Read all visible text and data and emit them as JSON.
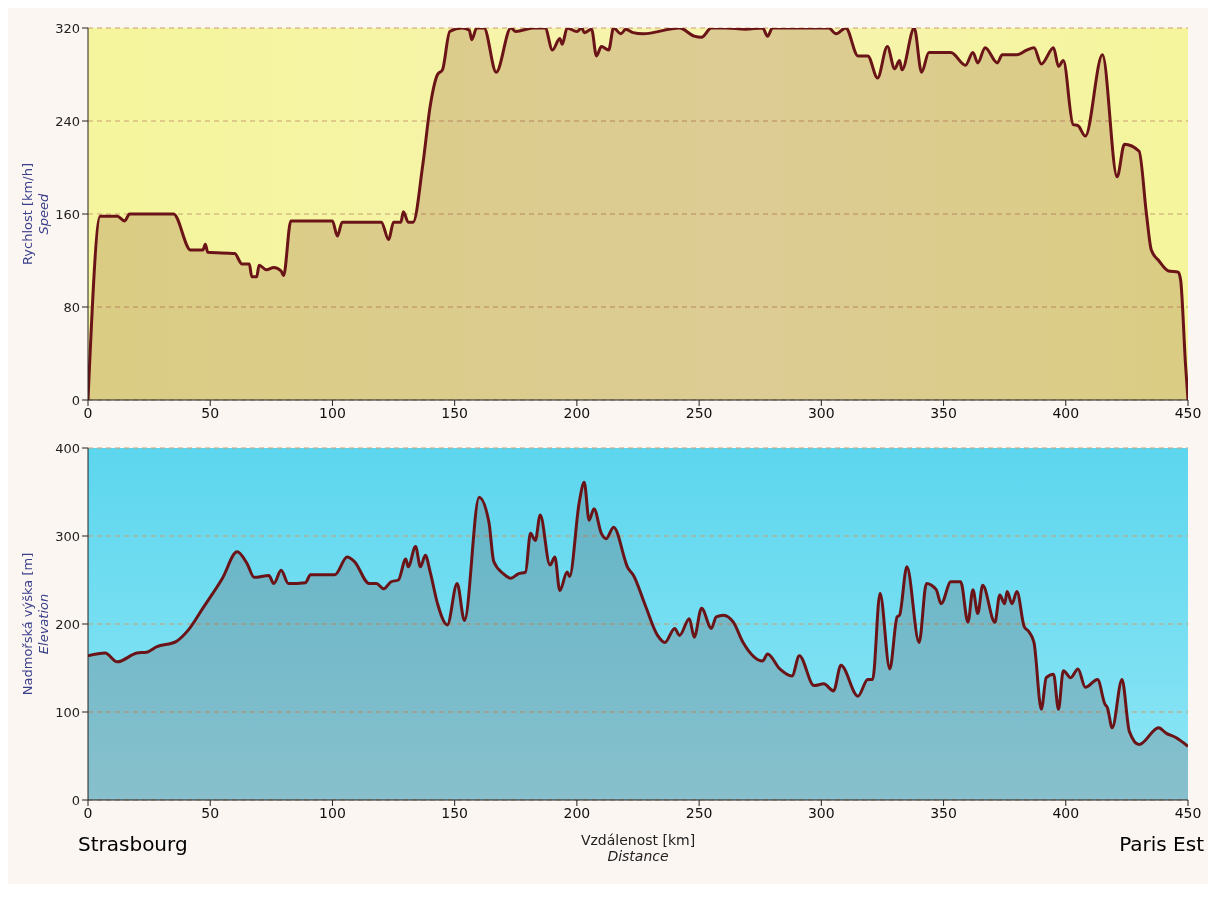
{
  "chart_data": [
    {
      "type": "area",
      "ylabel": "Rychlost [km/h]\nSpeed",
      "x": [
        0,
        5,
        12,
        15,
        17,
        35,
        42,
        47,
        48,
        49,
        60,
        63,
        66,
        67,
        69,
        70,
        73,
        76,
        79,
        80,
        83,
        100,
        102,
        104,
        120,
        123,
        125,
        128,
        129,
        131,
        133,
        137,
        140,
        143,
        145,
        148,
        153,
        156,
        157,
        159,
        162,
        167,
        173,
        175,
        182,
        187,
        190,
        193,
        194,
        196,
        200,
        202,
        203,
        206,
        208,
        210,
        213,
        215,
        218,
        220,
        223,
        227,
        242,
        248,
        251,
        255,
        261,
        269,
        276,
        278,
        280,
        303,
        306,
        310,
        315,
        319,
        323,
        327,
        330,
        332,
        333,
        338,
        341,
        344,
        353,
        359,
        362,
        364,
        367,
        372,
        374,
        380,
        384,
        387,
        390,
        395,
        397,
        399,
        403,
        405,
        408,
        415,
        421,
        424,
        430,
        433,
        435,
        438,
        442,
        446,
        447,
        449,
        450
      ],
      "series": [
        {
          "color": "#6b1418",
          "values": [
            0,
            158,
            158,
            154,
            160,
            160,
            129,
            129,
            134,
            127,
            126,
            117,
            117,
            106,
            106,
            116,
            112,
            114,
            111,
            107,
            154,
            154,
            141,
            153,
            153,
            138,
            153,
            153,
            162,
            153,
            153,
            203,
            253,
            280,
            284,
            317,
            320,
            318,
            310,
            320,
            320,
            282,
            320,
            317,
            320,
            320,
            301,
            311,
            306,
            320,
            317,
            320,
            316,
            319,
            296,
            304,
            301,
            320,
            315,
            319,
            316,
            315,
            320,
            313,
            312,
            320,
            320,
            319,
            320,
            313,
            320,
            320,
            315,
            320,
            296,
            296,
            277,
            304,
            285,
            292,
            284,
            320,
            282,
            299,
            299,
            288,
            299,
            290,
            303,
            290,
            297,
            297,
            301,
            303,
            289,
            303,
            287,
            292,
            237,
            236,
            227,
            297,
            192,
            220,
            214,
            160,
            129,
            120,
            111,
            110,
            103,
            30,
            0
          ]
        }
      ],
      "xlim": [
        0,
        450
      ],
      "xticks": [
        0,
        50,
        100,
        150,
        200,
        250,
        300,
        350,
        400,
        450
      ],
      "ylim": [
        0,
        320
      ],
      "yticks": [
        0,
        80,
        160,
        240,
        320
      ],
      "grid": "y",
      "marker": "none"
    },
    {
      "type": "area",
      "ylabel": "Nadmořská výška [m]\nElevation",
      "xlabel": "Vzdálenost [km]\nDistance",
      "x": [
        0,
        7,
        12,
        20,
        24,
        28,
        36,
        41,
        47,
        55,
        61,
        65,
        68,
        74,
        76,
        79,
        82,
        89,
        91,
        101,
        106,
        109,
        115,
        118,
        121,
        124,
        127,
        130,
        131,
        134,
        136,
        138,
        140,
        143,
        147,
        151,
        154,
        160,
        164,
        166,
        170,
        173,
        176,
        179,
        181,
        183,
        185,
        189,
        191,
        193,
        196,
        197,
        201,
        203,
        205,
        207,
        210,
        212,
        215,
        221,
        223,
        228,
        233,
        236,
        240,
        242,
        246,
        248,
        251,
        255,
        257,
        260,
        264,
        268,
        276,
        278,
        283,
        288,
        291,
        297,
        301,
        305,
        308,
        315,
        319,
        321,
        324,
        328,
        331,
        332,
        335,
        340,
        343,
        347,
        349,
        353,
        357,
        360,
        362,
        364,
        366,
        371,
        373,
        375,
        376,
        378,
        380,
        383,
        385,
        387,
        390,
        392,
        395,
        397,
        399,
        402,
        405,
        408,
        413,
        416,
        417,
        419,
        423,
        426,
        430,
        438,
        441,
        445,
        450
      ],
      "series": [
        {
          "color": "#6b1418",
          "values": [
            164,
            167,
            157,
            167,
            168,
            174,
            180,
            193,
            218,
            252,
            282,
            269,
            253,
            255,
            246,
            261,
            246,
            247,
            256,
            256,
            276,
            271,
            246,
            246,
            240,
            248,
            250,
            274,
            265,
            288,
            265,
            278,
            259,
            223,
            199,
            246,
            204,
            344,
            316,
            271,
            257,
            252,
            257,
            259,
            303,
            295,
            324,
            267,
            276,
            238,
            259,
            254,
            339,
            361,
            318,
            331,
            303,
            297,
            310,
            263,
            256,
            221,
            187,
            179,
            195,
            187,
            206,
            185,
            218,
            195,
            208,
            210,
            202,
            179,
            158,
            166,
            149,
            141,
            164,
            130,
            132,
            124,
            153,
            118,
            137,
            137,
            235,
            149,
            208,
            210,
            265,
            179,
            246,
            239,
            223,
            248,
            248,
            202,
            239,
            212,
            244,
            202,
            233,
            223,
            237,
            223,
            237,
            197,
            191,
            179,
            103,
            139,
            143,
            103,
            147,
            139,
            149,
            128,
            137,
            109,
            105,
            82,
            137,
            78,
            63,
            82,
            76,
            71,
            61
          ]
        }
      ],
      "xlim": [
        0,
        450
      ],
      "xticks": [
        0,
        50,
        100,
        150,
        200,
        250,
        300,
        350,
        400,
        450
      ],
      "ylim": [
        0,
        400
      ],
      "yticks": [
        0,
        100,
        200,
        300,
        400
      ],
      "grid": "y",
      "marker": "none",
      "annotations": [
        "Strasbourg",
        "Paris Est"
      ]
    }
  ]
}
